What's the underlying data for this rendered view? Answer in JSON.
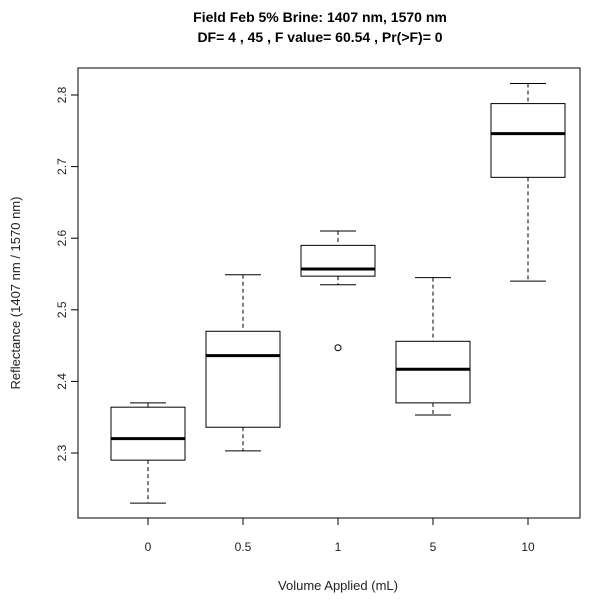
{
  "chart_data": {
    "type": "boxplot",
    "title": "Field Feb 5% Brine: 1407 nm,  1570  nm",
    "subtitle": "DF= 4 , 45 , F value= 60.54 , Pr(>F)= 0",
    "xlabel": "Volume Applied (mL)",
    "ylabel": "Reflectance (1407 nm / 1570 nm)",
    "categories": [
      "0",
      "0.5",
      "1",
      "5",
      "10"
    ],
    "ylim": [
      2.2,
      2.84
    ],
    "yticks": [
      "2.3",
      "2.4",
      "2.5",
      "2.6",
      "2.7",
      "2.8"
    ],
    "boxes": [
      {
        "category": "0",
        "whisker_low": 2.23,
        "q1": 2.29,
        "median": 2.32,
        "q3": 2.364,
        "whisker_high": 2.37,
        "outliers": []
      },
      {
        "category": "0.5",
        "whisker_low": 2.303,
        "q1": 2.336,
        "median": 2.436,
        "q3": 2.47,
        "whisker_high": 2.549,
        "outliers": []
      },
      {
        "category": "1",
        "whisker_low": 2.535,
        "q1": 2.547,
        "median": 2.557,
        "q3": 2.59,
        "whisker_high": 2.61,
        "outliers": [
          2.447
        ]
      },
      {
        "category": "5",
        "whisker_low": 2.353,
        "q1": 2.37,
        "median": 2.417,
        "q3": 2.456,
        "whisker_high": 2.545,
        "outliers": []
      },
      {
        "category": "10",
        "whisker_low": 2.54,
        "q1": 2.685,
        "median": 2.746,
        "q3": 2.788,
        "whisker_high": 2.816,
        "outliers": []
      }
    ],
    "grid": false,
    "legend": "none"
  }
}
